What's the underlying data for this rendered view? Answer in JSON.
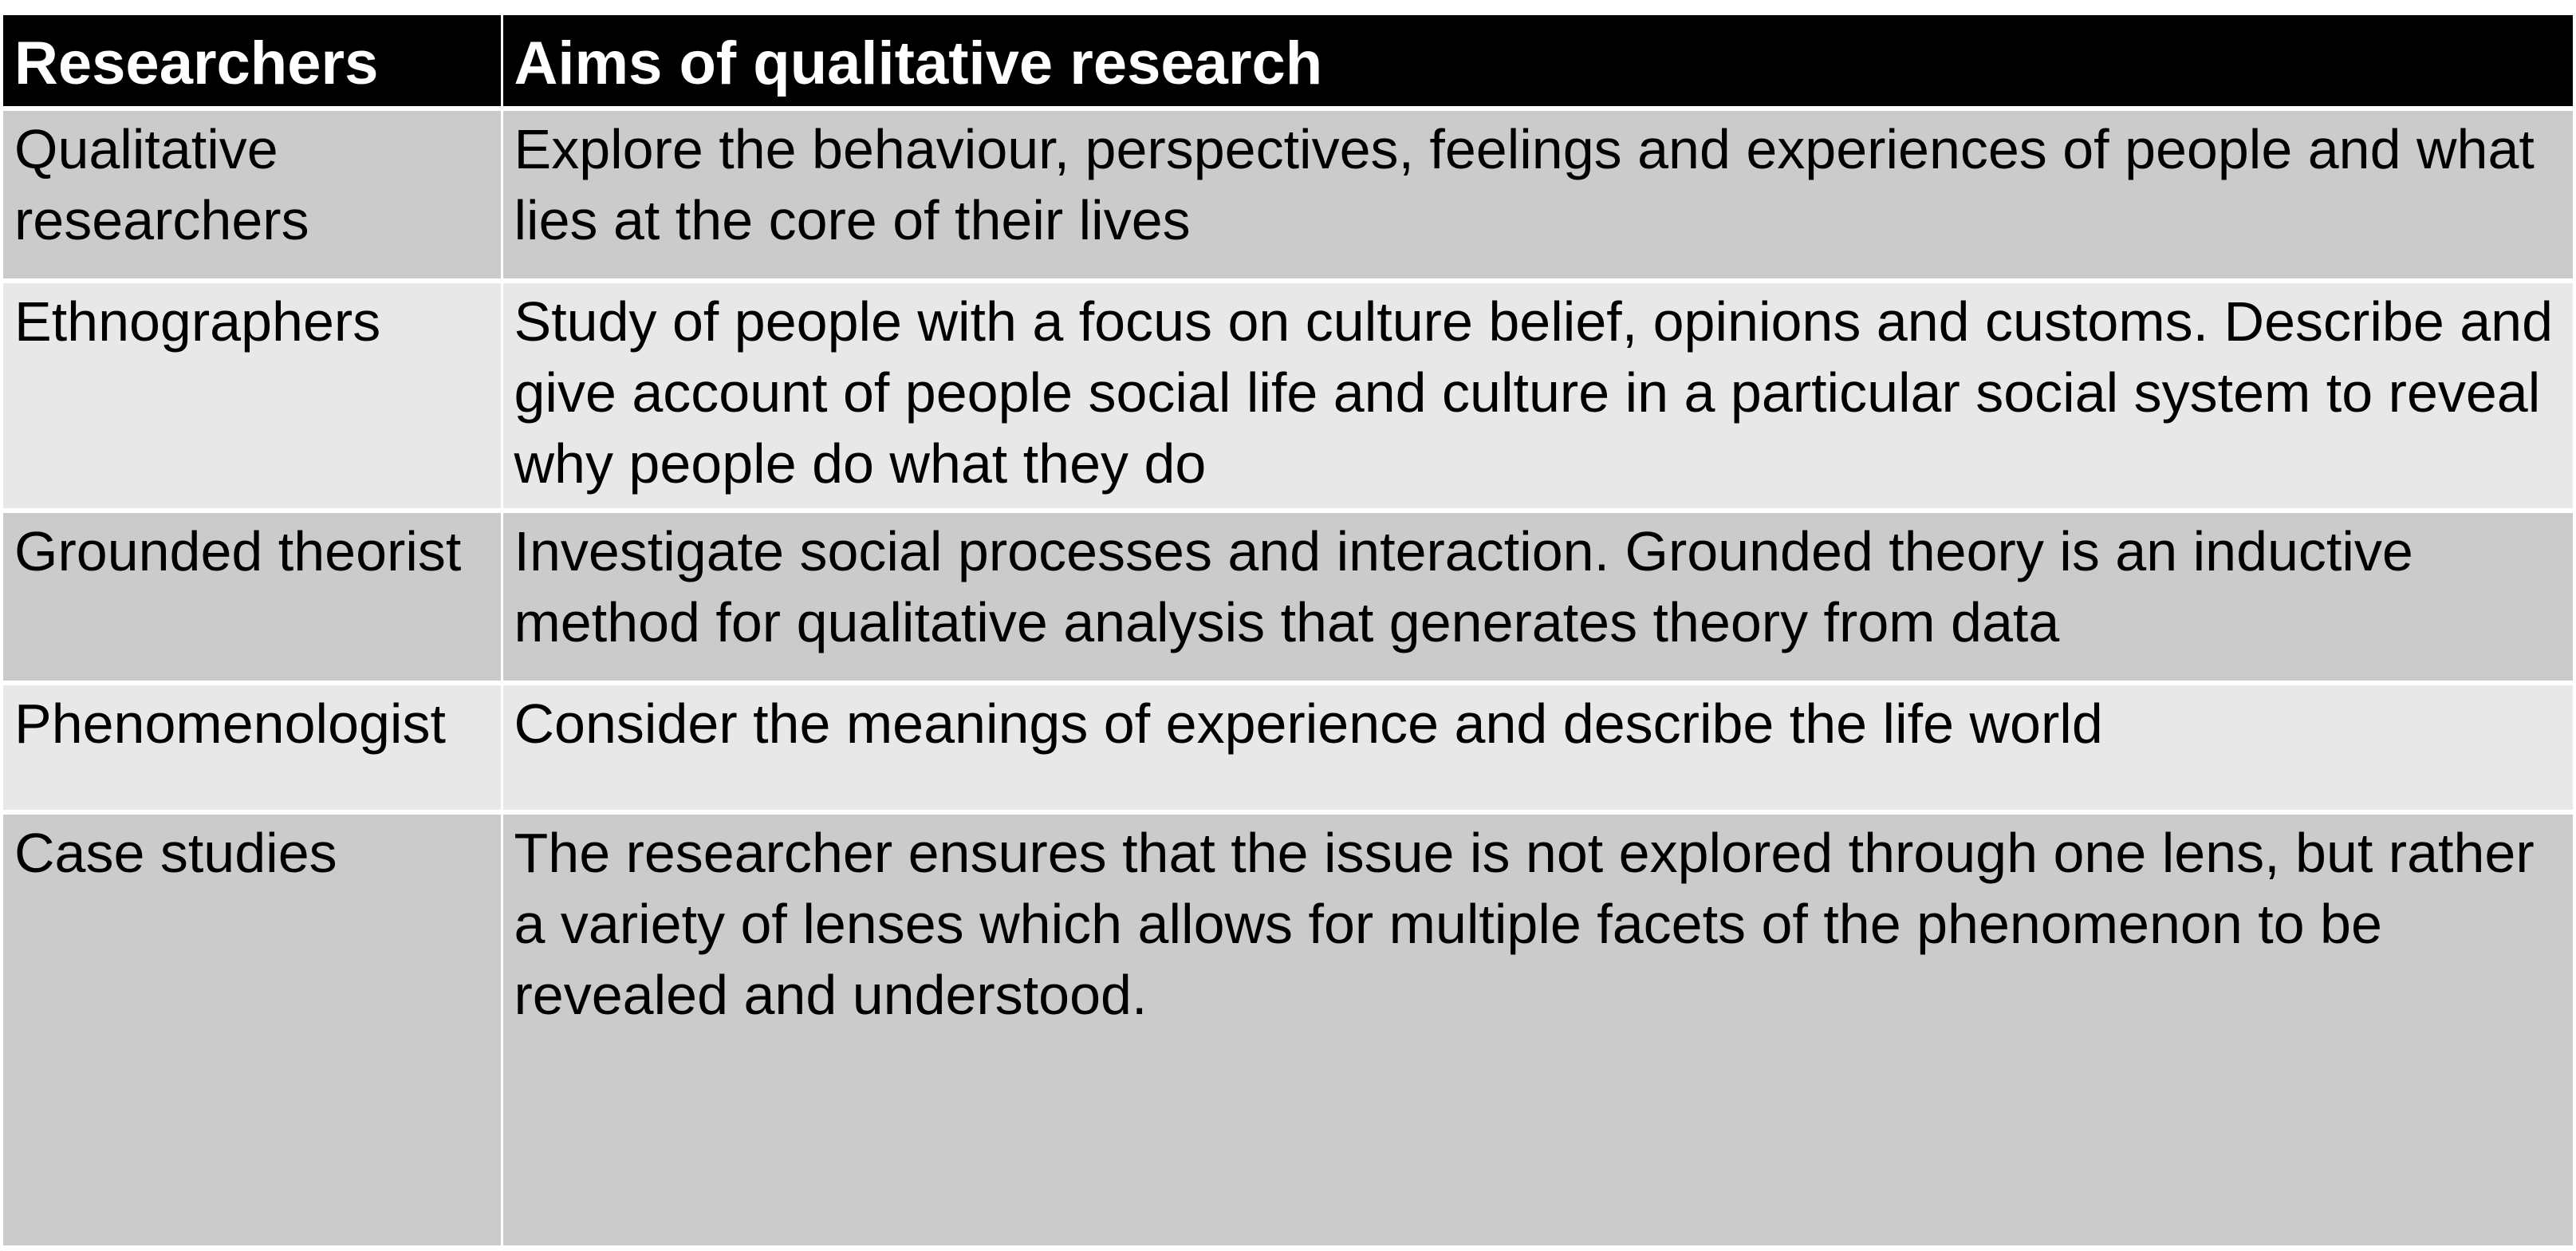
{
  "table": {
    "headers": {
      "researchers": "Researchers",
      "aims": "Aims of qualitative research"
    },
    "rows": [
      {
        "researcher": "Qualitative researchers",
        "aim": "Explore the behaviour, perspectives, feelings and experiences of people and what lies at the core of their lives"
      },
      {
        "researcher": "Ethnographers",
        "aim": "Study of people with a focus on culture belief, opinions and customs. Describe and give account of people social life and culture in a particular social system to reveal why people do what they do"
      },
      {
        "researcher": "Grounded theorist",
        "aim": "Investigate social processes and interaction. Grounded theory is an inductive method for qualitative analysis that generates theory from data"
      },
      {
        "researcher": "Phenomenologist",
        "aim": "Consider the meanings of experience and describe the life world"
      },
      {
        "researcher": "Case studies",
        "aim": "The researcher ensures that the issue is not explored through one lens, but rather a variety of lenses which allows for multiple facets of the phenomenon to be revealed and understood."
      }
    ]
  },
  "colors": {
    "header_bg": "#000000",
    "header_text": "#ffffff",
    "row_dark": "#cbcbcb",
    "row_light": "#e8e8e8"
  }
}
